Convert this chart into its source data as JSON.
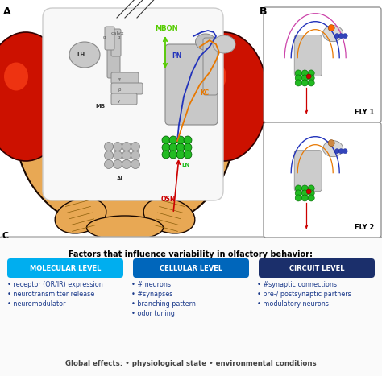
{
  "panel_c_title": "Factors that influence variability in olfactory behavior:",
  "labels": [
    "MOLECULAR LEVEL",
    "CELLULAR LEVEL",
    "CIRCUIT LEVEL"
  ],
  "label_colors": [
    "#00AEEF",
    "#0066BB",
    "#1B2F6B"
  ],
  "bullet_color": "#1B3A8B",
  "col1_bullets": [
    "• receptor (OR/IR) expression",
    "• neurotransmitter release",
    "• neuromodulator"
  ],
  "col2_bullets": [
    "• # neurons",
    "• #synapses",
    "• branching pattern",
    "• odor tuning"
  ],
  "col3_bullets": [
    "• #synaptic connections",
    "• pre-/ postsynaptic partners",
    "• modulatory neurons"
  ],
  "global_effects": "Global effects: • physiological state • environmental conditions",
  "panel_a_label": "A",
  "panel_b_label": "B",
  "panel_c_label": "C",
  "fly1_label": "FLY 1",
  "fly2_label": "FLY 2",
  "bg_color": "#FFFFFF",
  "head_body_color": "#E8A854",
  "head_outline_color": "#1A0800",
  "eye_color": "#CC1100",
  "brain_bg": "#F8F8F8",
  "mb_color": "#BBBBBB",
  "mb_edge": "#888888",
  "al_color": "#AAAAAA",
  "ln_color": "#22BB22",
  "green_arrow_color": "#55CC00",
  "blue_line_color": "#2233BB",
  "orange_line_color": "#E87800",
  "red_arrow_color": "#CC0000",
  "osn_color": "#CC0000",
  "mbon_color": "#55CC00",
  "pn_color": "#2233BB",
  "kc_color": "#E87800",
  "lh_color": "#666666",
  "box_border_color": "#AAAAAA",
  "fly_b1_colors": [
    "#3344BB",
    "#CC44AA",
    "#E87800",
    "#BBAAAA"
  ],
  "fly_b2_colors": [
    "#3344BB",
    "#E87800",
    "#BBAAAA"
  ]
}
